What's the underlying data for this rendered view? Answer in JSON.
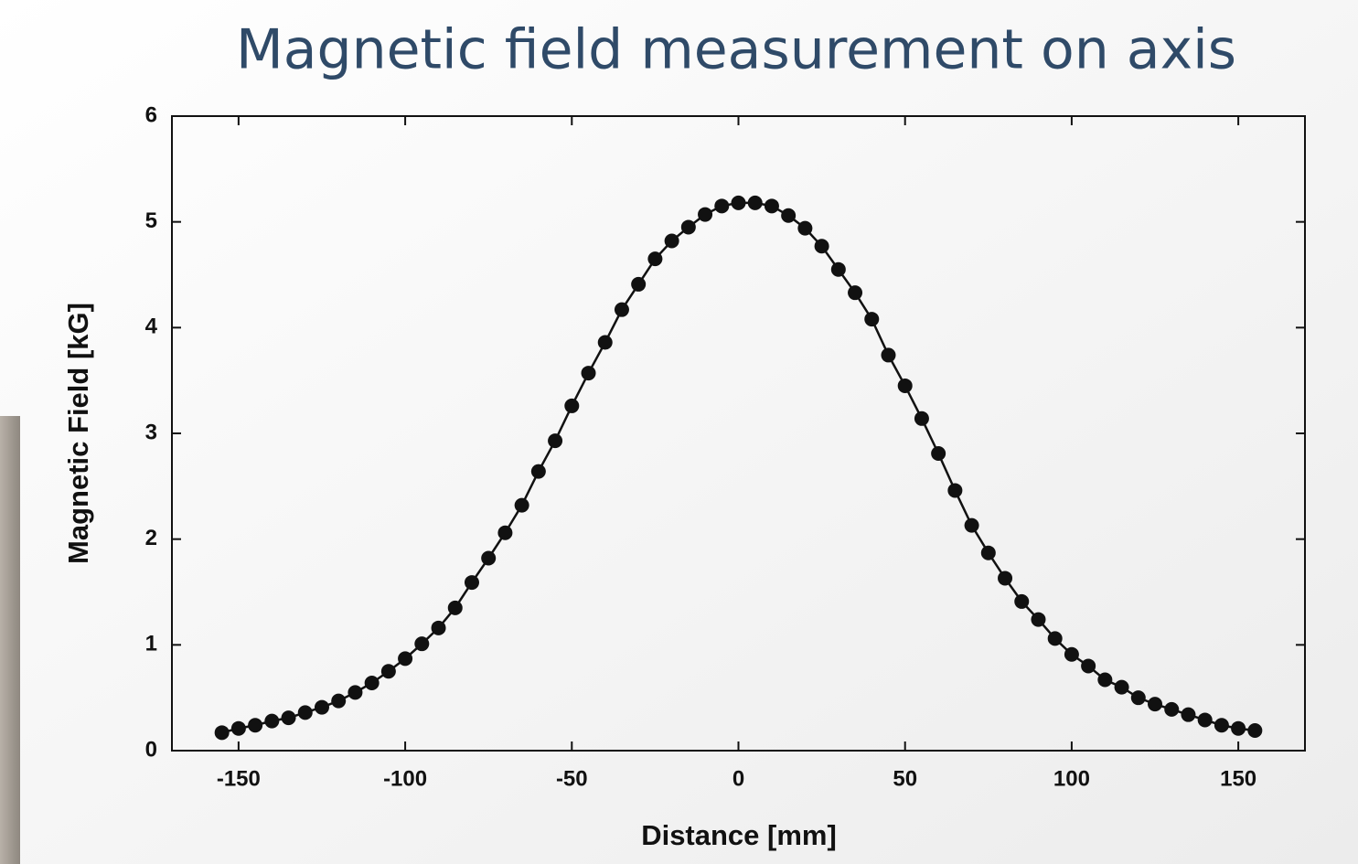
{
  "chart_data": {
    "type": "line",
    "title": "Magnetic field measurement on axis",
    "x_label": "Distance [mm]",
    "y_label": "Magnetic Field [kG]",
    "xlim": [
      -170,
      170
    ],
    "xticks": [
      -150,
      -100,
      -50,
      0,
      50,
      100,
      150
    ],
    "ylim": [
      0,
      6
    ],
    "yticks": [
      0,
      1,
      2,
      3,
      4,
      5,
      6
    ],
    "grid": false,
    "markers": true,
    "series": [
      {
        "color": "#111111",
        "x": [
          -155,
          -150,
          -145,
          -140,
          -135,
          -130,
          -125,
          -120,
          -115,
          -110,
          -105,
          -100,
          -95,
          -90,
          -85,
          -80,
          -75,
          -70,
          -65,
          -60,
          -55,
          -50,
          -45,
          -40,
          -35,
          -30,
          -25,
          -20,
          -15,
          -10,
          -5,
          0,
          5,
          10,
          15,
          20,
          25,
          30,
          35,
          40,
          45,
          50,
          55,
          60,
          65,
          70,
          75,
          80,
          85,
          90,
          95,
          100,
          105,
          110,
          115,
          120,
          125,
          130,
          135,
          140,
          145,
          150,
          155
        ],
        "values": [
          0.17,
          0.21,
          0.24,
          0.28,
          0.31,
          0.36,
          0.41,
          0.47,
          0.55,
          0.64,
          0.75,
          0.87,
          1.01,
          1.16,
          1.35,
          1.59,
          1.82,
          2.06,
          2.32,
          2.64,
          2.93,
          3.26,
          3.57,
          3.86,
          4.17,
          4.41,
          4.65,
          4.82,
          4.95,
          5.07,
          5.15,
          5.18,
          5.18,
          5.15,
          5.06,
          4.94,
          4.77,
          4.55,
          4.33,
          4.08,
          3.74,
          3.45,
          3.14,
          2.81,
          2.46,
          2.13,
          1.87,
          1.63,
          1.41,
          1.24,
          1.06,
          0.91,
          0.8,
          0.67,
          0.6,
          0.5,
          0.44,
          0.39,
          0.34,
          0.29,
          0.24,
          0.21,
          0.19
        ]
      }
    ]
  }
}
